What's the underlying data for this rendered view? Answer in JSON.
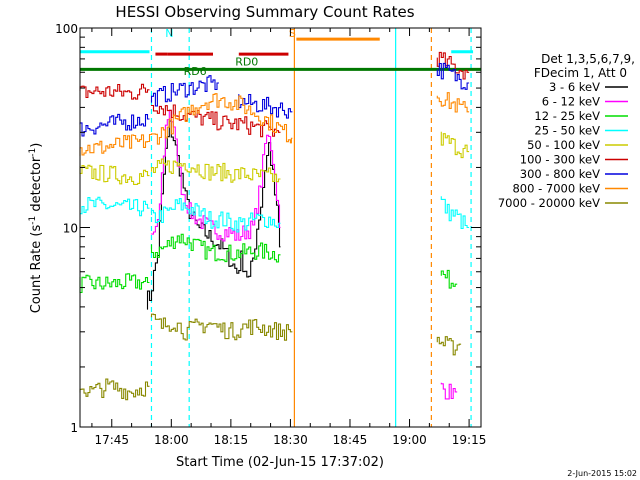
{
  "chart_data": {
    "type": "line",
    "title": "HESSI Observing Summary Count Rates",
    "xlabel": "Start Time (02-Jun-15 17:37:02)",
    "ylabel_main": "Count Rate (s",
    "ylabel_sup1": "-1",
    "ylabel_mid": " detector",
    "ylabel_sup2": "-1",
    "ylabel_end": ")",
    "yscale": "log",
    "ylim": [
      1,
      100
    ],
    "xlim_min": [
      37,
      138
    ],
    "x_ticks": [
      {
        "m": 45,
        "label": "17:45"
      },
      {
        "m": 60,
        "label": "18:00"
      },
      {
        "m": 75,
        "label": "18:15"
      },
      {
        "m": 90,
        "label": "18:30"
      },
      {
        "m": 105,
        "label": "18:45"
      },
      {
        "m": 120,
        "label": "19:00"
      },
      {
        "m": 135,
        "label": "19:15"
      }
    ],
    "y_ticks": [
      {
        "v": 1,
        "label": "1"
      },
      {
        "v": 10,
        "label": "10"
      },
      {
        "v": 100,
        "label": "100"
      }
    ],
    "legend": {
      "header1": "Det 1,3,5,6,7,9,",
      "header2": "FDecim 1, Att 0",
      "entries": [
        {
          "label": "3 - 6 keV",
          "color": "#000000"
        },
        {
          "label": "6 - 12 keV",
          "color": "#ff00ff"
        },
        {
          "label": "12 - 25 keV",
          "color": "#00dd00"
        },
        {
          "label": "25 - 50 keV",
          "color": "#00ffff"
        },
        {
          "label": "50 - 100 keV",
          "color": "#cccc00"
        },
        {
          "label": "100 - 300 keV",
          "color": "#cc0000"
        },
        {
          "label": "300 - 800 keV",
          "color": "#0000dd"
        },
        {
          "label": "800 - 7000 keV",
          "color": "#ff8800"
        },
        {
          "label": "7000 - 20000 keV",
          "color": "#888800"
        }
      ]
    },
    "annotations": [
      {
        "text": "N",
        "m": 59.5,
        "v": 90,
        "color": "#00ffff"
      },
      {
        "text": "RD0",
        "m": 79,
        "v": 65,
        "color": "#007700"
      },
      {
        "text": "RD6",
        "m": 66,
        "v": 58,
        "color": "#007700"
      },
      {
        "text": "S",
        "m": 90.5,
        "v": 90,
        "color": "#ff8800"
      }
    ],
    "orbit_bars": [
      {
        "name": "night",
        "color": "#00ffff",
        "y": 76,
        "segments": [
          [
            37,
            54.5
          ],
          [
            130.5,
            136
          ]
        ]
      },
      {
        "name": "saa",
        "color": "#ff8800",
        "y": 88,
        "segments": [
          [
            91.5,
            112.5
          ]
        ]
      },
      {
        "name": "flare",
        "color": "#cc0000",
        "y": 74,
        "segments": [
          [
            56,
            59
          ],
          [
            59,
            70.5
          ],
          [
            77,
            89.5
          ]
        ]
      },
      {
        "name": "decimation",
        "color": "#007700",
        "y": 62,
        "segments": [
          [
            37,
            138
          ]
        ]
      }
    ],
    "time_markers": [
      {
        "m": 55,
        "color": "#00ffff",
        "style": "dashed"
      },
      {
        "m": 64.5,
        "color": "#00ffff",
        "style": "dashed"
      },
      {
        "m": 91,
        "color": "#ff8800",
        "style": "solid"
      },
      {
        "m": 116.5,
        "color": "#00ffff",
        "style": "solid"
      },
      {
        "m": 125.5,
        "color": "#ff8800",
        "style": "dashed"
      },
      {
        "m": 135.5,
        "color": "#00ffff",
        "style": "dashed"
      }
    ],
    "series": [
      {
        "name": "3 - 6 keV",
        "color": "#000000",
        "segments": [
          [
            [
              54,
              4.3
            ],
            [
              55,
              4.5
            ],
            [
              57,
              7.5
            ],
            [
              58,
              14
            ],
            [
              59,
              24
            ],
            [
              60,
              32
            ],
            [
              61,
              28
            ],
            [
              62,
              22
            ],
            [
              63,
              18
            ],
            [
              64,
              14
            ],
            [
              65,
              12
            ],
            [
              67,
              10
            ],
            [
              70,
              9
            ],
            [
              73,
              8
            ],
            [
              75,
              7
            ],
            [
              77,
              6
            ],
            [
              78,
              7
            ],
            [
              80,
              5.5
            ],
            [
              81,
              7
            ],
            [
              82,
              10
            ],
            [
              83,
              13
            ],
            [
              84,
              20
            ],
            [
              85,
              26
            ],
            [
              86,
              18
            ],
            [
              87,
              12
            ],
            [
              87.5,
              8
            ]
          ]
        ]
      },
      {
        "name": "6 - 12 keV",
        "color": "#ff00ff",
        "segments": [
          [
            [
              55,
              9
            ],
            [
              57,
              10
            ],
            [
              58,
              18
            ],
            [
              59,
              32
            ],
            [
              60,
              40
            ],
            [
              61,
              30
            ],
            [
              62,
              22
            ],
            [
              63,
              16
            ],
            [
              65,
              12
            ],
            [
              67,
              11
            ],
            [
              70,
              10
            ],
            [
              73,
              9.5
            ],
            [
              75,
              9.5
            ],
            [
              77,
              9
            ],
            [
              79,
              9.5
            ],
            [
              81,
              10
            ],
            [
              82,
              13
            ],
            [
              83,
              17
            ],
            [
              84,
              26
            ],
            [
              85,
              30
            ],
            [
              86,
              22
            ],
            [
              87,
              15
            ],
            [
              87.5,
              10
            ]
          ],
          [
            [
              128,
              1.6
            ],
            [
              130,
              1.5
            ],
            [
              132,
              1.5
            ]
          ]
        ]
      },
      {
        "name": "12 - 25 keV",
        "color": "#00dd00",
        "segments": [
          [
            [
              37,
              5.2
            ],
            [
              45,
              5.2
            ],
            [
              50,
              5.3
            ],
            [
              54.5,
              5.3
            ]
          ],
          [
            [
              55,
              7.5
            ],
            [
              57,
              7.6
            ],
            [
              59,
              8
            ],
            [
              62,
              9
            ],
            [
              65,
              8.5
            ],
            [
              67,
              8
            ],
            [
              70,
              7.5
            ],
            [
              73,
              7.5
            ],
            [
              76,
              7.4
            ],
            [
              79,
              7.5
            ],
            [
              82,
              7.6
            ],
            [
              85,
              7.5
            ],
            [
              87.5,
              7.3
            ]
          ],
          [
            [
              128,
              6
            ],
            [
              130,
              5.5
            ],
            [
              132,
              5.2
            ]
          ]
        ]
      },
      {
        "name": "25 - 50 keV",
        "color": "#00ffff",
        "segments": [
          [
            [
              37,
              13
            ],
            [
              45,
              12.8
            ],
            [
              50,
              12.5
            ],
            [
              54.5,
              12.5
            ]
          ],
          [
            [
              55,
              11
            ],
            [
              58,
              11.5
            ],
            [
              60,
              12
            ],
            [
              62,
              13
            ],
            [
              65,
              12.5
            ],
            [
              67,
              12
            ],
            [
              70,
              11
            ],
            [
              73,
              11
            ],
            [
              76,
              10.5
            ],
            [
              79,
              10.5
            ],
            [
              82,
              11
            ],
            [
              85,
              11
            ],
            [
              87.5,
              10.5
            ]
          ],
          [
            [
              128,
              14
            ],
            [
              130,
              12
            ],
            [
              132,
              11.5
            ],
            [
              135,
              10
            ]
          ]
        ]
      },
      {
        "name": "50 - 100 keV",
        "color": "#cccc00",
        "segments": [
          [
            [
              37,
              19
            ],
            [
              45,
              18.5
            ],
            [
              50,
              18
            ],
            [
              54.5,
              18.2
            ]
          ],
          [
            [
              55,
              19
            ],
            [
              58,
              20
            ],
            [
              61,
              20.5
            ],
            [
              64,
              21
            ],
            [
              67,
              20
            ],
            [
              70,
              19
            ],
            [
              73,
              19
            ],
            [
              76,
              18.5
            ],
            [
              79,
              18.5
            ],
            [
              82,
              18
            ],
            [
              85,
              18
            ],
            [
              87.5,
              17.5
            ]
          ],
          [
            [
              128,
              28
            ],
            [
              130,
              27
            ],
            [
              132,
              25.5
            ],
            [
              135,
              24
            ]
          ]
        ]
      },
      {
        "name": "100 - 300 keV",
        "color": "#cc0000",
        "segments": [
          [
            [
              37,
              47
            ],
            [
              40,
              48
            ],
            [
              45,
              48
            ],
            [
              50,
              47
            ],
            [
              54.5,
              49
            ]
          ],
          [
            [
              55,
              42
            ],
            [
              57,
              41
            ],
            [
              60,
              39
            ],
            [
              63,
              37
            ],
            [
              66,
              36
            ],
            [
              69,
              35
            ],
            [
              72,
              34
            ],
            [
              75,
              33
            ],
            [
              78,
              33
            ],
            [
              81,
              32
            ],
            [
              84,
              31
            ],
            [
              87.5,
              30
            ]
          ],
          [
            [
              127,
              72
            ],
            [
              129,
              68
            ],
            [
              131,
              65
            ],
            [
              133,
              62
            ],
            [
              135,
              60
            ]
          ]
        ]
      },
      {
        "name": "300 - 800 keV",
        "color": "#0000dd",
        "segments": [
          [
            [
              37,
              31
            ],
            [
              40,
              32
            ],
            [
              45,
              33
            ],
            [
              50,
              34
            ],
            [
              54.5,
              35
            ]
          ],
          [
            [
              55,
              44
            ],
            [
              58,
              46
            ],
            [
              61,
              48
            ],
            [
              64,
              50
            ],
            [
              67,
              51
            ],
            [
              70,
              52
            ],
            [
              72,
              53
            ]
          ],
          [
            [
              77,
              43
            ],
            [
              80,
              42
            ],
            [
              83,
              41
            ],
            [
              86,
              40
            ],
            [
              89,
              39
            ],
            [
              90.5,
              38
            ]
          ],
          [
            [
              127,
              63
            ],
            [
              130,
              60
            ],
            [
              132,
              57
            ],
            [
              135,
              53
            ]
          ]
        ]
      },
      {
        "name": "800 - 7000 keV",
        "color": "#ff8800",
        "segments": [
          [
            [
              37,
              25
            ],
            [
              42,
              25
            ],
            [
              47,
              26
            ],
            [
              51,
              26.5
            ],
            [
              54,
              27
            ],
            [
              57,
              29
            ],
            [
              60,
              32
            ],
            [
              63,
              36
            ],
            [
              66,
              40
            ],
            [
              69,
              43
            ],
            [
              72,
              44
            ],
            [
              75,
              43
            ],
            [
              78,
              41
            ],
            [
              81,
              38
            ],
            [
              84,
              35
            ],
            [
              87,
              32
            ],
            [
              90,
              29
            ],
            [
              90.5,
              28
            ]
          ],
          [
            [
              127,
              47
            ],
            [
              129,
              44
            ],
            [
              131,
              42
            ],
            [
              133,
              40
            ],
            [
              135,
              38
            ]
          ]
        ]
      },
      {
        "name": "7000 - 20000 keV",
        "color": "#888800",
        "segments": [
          [
            [
              37,
              1.6
            ],
            [
              40,
              1.5
            ],
            [
              45,
              1.6
            ],
            [
              50,
              1.5
            ],
            [
              54.5,
              1.6
            ]
          ],
          [
            [
              55,
              3.5
            ],
            [
              58,
              3.2
            ],
            [
              61,
              3.4
            ],
            [
              64,
              3.0
            ],
            [
              67,
              3.2
            ],
            [
              70,
              3.3
            ],
            [
              73,
              3.1
            ],
            [
              76,
              3.0
            ],
            [
              79,
              3.2
            ],
            [
              82,
              3.2
            ],
            [
              85,
              3.1
            ],
            [
              88,
              3.0
            ],
            [
              90.5,
              3.0
            ]
          ],
          [
            [
              127,
              2.8
            ],
            [
              129,
              2.6
            ],
            [
              131,
              2.5
            ],
            [
              133,
              2.6
            ]
          ]
        ]
      }
    ]
  },
  "footer_date": "2-Jun-2015 15:02"
}
